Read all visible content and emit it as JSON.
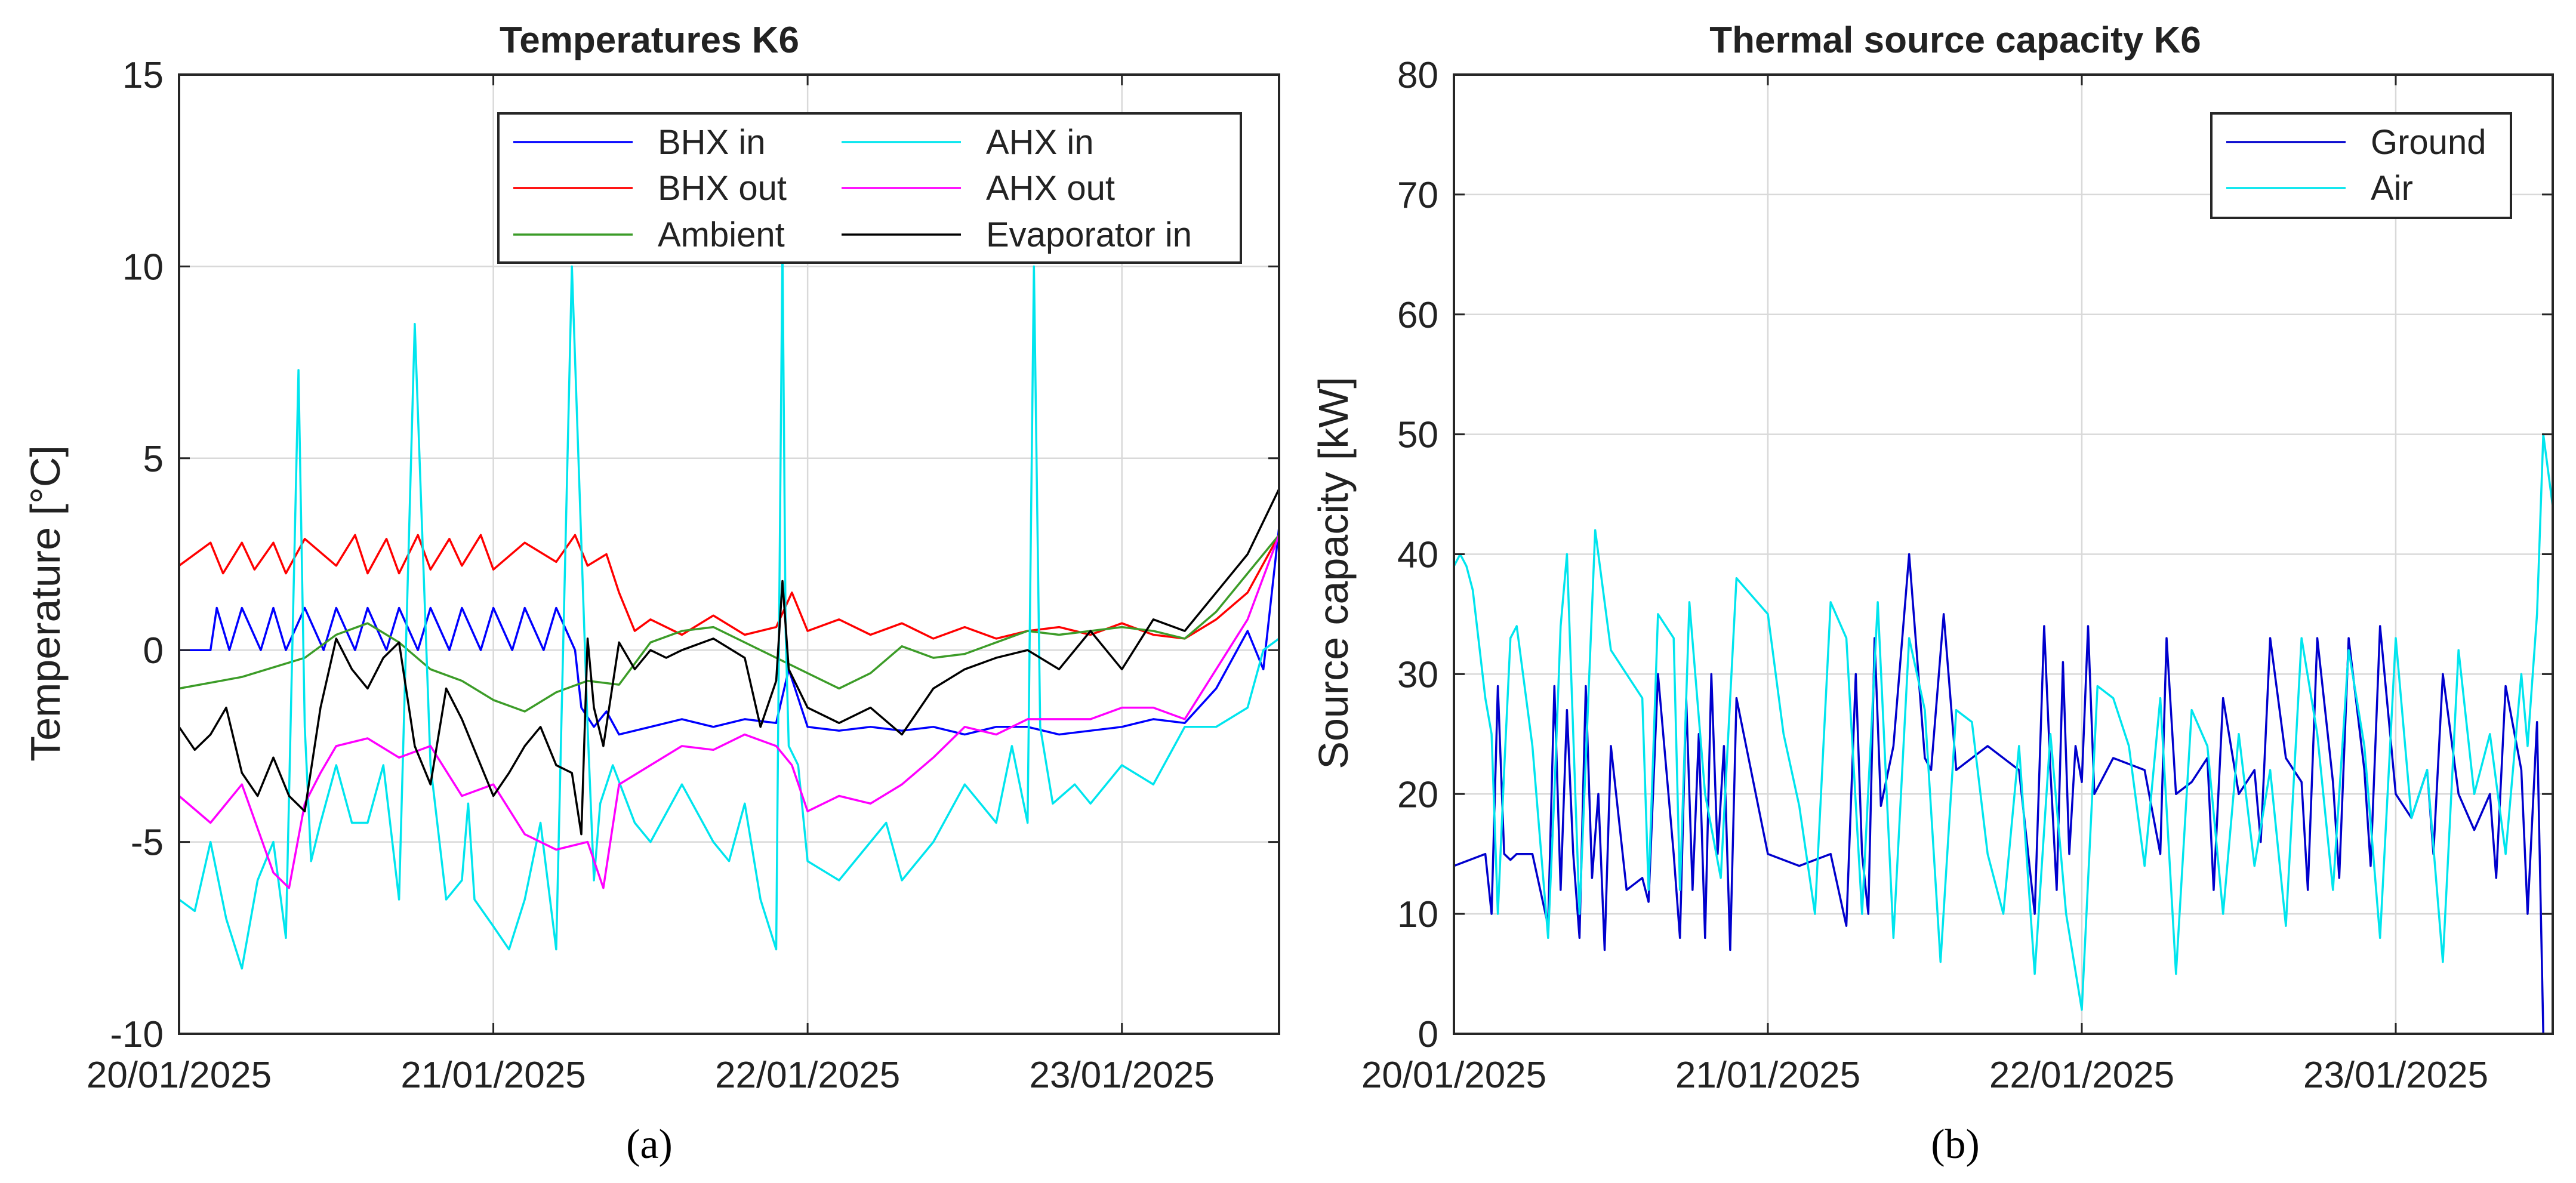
{
  "chart_data": [
    {
      "type": "line",
      "panel_label": "(a)",
      "title": "Temperatures K6",
      "xlabel": "",
      "ylabel": "Temperature [°C]",
      "ylim": [
        -10,
        15
      ],
      "yticks": [
        "-10",
        "-5",
        "0",
        "5",
        "10",
        "15"
      ],
      "x_range_days": [
        0,
        3.5
      ],
      "xtick_days": [
        0,
        1,
        2,
        3
      ],
      "xtick_labels": [
        "20/01/2025",
        "21/01/2025",
        "22/01/2025",
        "23/01/2025"
      ],
      "grid": true,
      "legend_position": "top-right",
      "legend_columns": 2,
      "series": [
        {
          "name": "BHX in",
          "color": "#0000ff",
          "x": [
            0,
            0.1,
            0.12,
            0.16,
            0.2,
            0.26,
            0.3,
            0.34,
            0.4,
            0.46,
            0.5,
            0.56,
            0.6,
            0.66,
            0.7,
            0.76,
            0.8,
            0.86,
            0.9,
            0.96,
            1.0,
            1.06,
            1.1,
            1.16,
            1.2,
            1.26,
            1.28,
            1.32,
            1.36,
            1.4,
            1.5,
            1.6,
            1.7,
            1.8,
            1.9,
            1.94,
            2.0,
            2.1,
            2.2,
            2.3,
            2.4,
            2.5,
            2.6,
            2.7,
            2.8,
            2.9,
            3.0,
            3.1,
            3.2,
            3.3,
            3.4,
            3.45,
            3.5
          ],
          "y": [
            0.0,
            0.0,
            1.1,
            0.0,
            1.1,
            0.0,
            1.1,
            0.0,
            1.1,
            0.0,
            1.1,
            0.0,
            1.1,
            0.0,
            1.1,
            0.0,
            1.1,
            0.0,
            1.1,
            0.0,
            1.1,
            0.0,
            1.1,
            0.0,
            1.1,
            0.0,
            -1.5,
            -2.0,
            -1.6,
            -2.2,
            -2.0,
            -1.8,
            -2.0,
            -1.8,
            -1.9,
            -0.5,
            -2.0,
            -2.1,
            -2.0,
            -2.1,
            -2.0,
            -2.2,
            -2.0,
            -2.0,
            -2.2,
            -2.1,
            -2.0,
            -1.8,
            -1.9,
            -1.0,
            0.5,
            -0.5,
            3.2
          ]
        },
        {
          "name": "BHX out",
          "color": "#ff0000",
          "x": [
            0,
            0.1,
            0.14,
            0.2,
            0.24,
            0.3,
            0.34,
            0.4,
            0.5,
            0.56,
            0.6,
            0.66,
            0.7,
            0.76,
            0.8,
            0.86,
            0.9,
            0.96,
            1.0,
            1.1,
            1.2,
            1.26,
            1.3,
            1.36,
            1.4,
            1.45,
            1.5,
            1.6,
            1.7,
            1.8,
            1.9,
            1.95,
            2.0,
            2.1,
            2.2,
            2.3,
            2.4,
            2.5,
            2.6,
            2.7,
            2.8,
            2.9,
            3.0,
            3.1,
            3.2,
            3.3,
            3.4,
            3.5
          ],
          "y": [
            2.2,
            2.8,
            2.0,
            2.8,
            2.1,
            2.8,
            2.0,
            2.9,
            2.2,
            3.0,
            2.0,
            2.9,
            2.0,
            3.0,
            2.1,
            2.9,
            2.2,
            3.0,
            2.1,
            2.8,
            2.3,
            3.0,
            2.2,
            2.5,
            1.5,
            0.5,
            0.8,
            0.4,
            0.9,
            0.4,
            0.6,
            1.5,
            0.5,
            0.8,
            0.4,
            0.7,
            0.3,
            0.6,
            0.3,
            0.5,
            0.6,
            0.4,
            0.7,
            0.4,
            0.3,
            0.8,
            1.5,
            3.0
          ]
        },
        {
          "name": "Ambient",
          "color": "#3c9c28",
          "x": [
            0,
            0.2,
            0.4,
            0.5,
            0.6,
            0.7,
            0.8,
            0.9,
            1.0,
            1.1,
            1.2,
            1.3,
            1.4,
            1.5,
            1.6,
            1.7,
            1.8,
            1.9,
            2.0,
            2.1,
            2.2,
            2.3,
            2.4,
            2.5,
            2.6,
            2.7,
            2.8,
            2.9,
            3.0,
            3.1,
            3.2,
            3.3,
            3.4,
            3.5
          ],
          "y": [
            -1.0,
            -0.7,
            -0.2,
            0.4,
            0.7,
            0.2,
            -0.5,
            -0.8,
            -1.3,
            -1.6,
            -1.1,
            -0.8,
            -0.9,
            0.2,
            0.5,
            0.6,
            0.2,
            -0.2,
            -0.6,
            -1.0,
            -0.6,
            0.1,
            -0.2,
            -0.1,
            0.2,
            0.5,
            0.4,
            0.5,
            0.6,
            0.5,
            0.3,
            1.0,
            2.0,
            3.0
          ]
        },
        {
          "name": "AHX in",
          "color": "#00e5ee",
          "x": [
            0,
            0.05,
            0.1,
            0.15,
            0.2,
            0.25,
            0.3,
            0.34,
            0.38,
            0.4,
            0.42,
            0.45,
            0.5,
            0.55,
            0.6,
            0.65,
            0.7,
            0.75,
            0.8,
            0.85,
            0.9,
            0.92,
            0.94,
            1.0,
            1.05,
            1.1,
            1.15,
            1.2,
            1.25,
            1.3,
            1.32,
            1.34,
            1.38,
            1.45,
            1.5,
            1.6,
            1.7,
            1.75,
            1.8,
            1.85,
            1.9,
            1.92,
            1.93,
            1.94,
            1.97,
            2.0,
            2.1,
            2.2,
            2.25,
            2.3,
            2.4,
            2.5,
            2.55,
            2.6,
            2.65,
            2.7,
            2.72,
            2.74,
            2.78,
            2.85,
            2.9,
            3.0,
            3.1,
            3.2,
            3.3,
            3.4,
            3.45,
            3.5
          ],
          "y": [
            -6.5,
            -6.8,
            -5.0,
            -7.0,
            -8.3,
            -6.0,
            -5.0,
            -7.5,
            7.3,
            -2.0,
            -5.5,
            -4.5,
            -3.0,
            -4.5,
            -4.5,
            -3.0,
            -6.5,
            8.5,
            -3.0,
            -6.5,
            -6.0,
            -4.0,
            -6.5,
            -7.2,
            -7.8,
            -6.5,
            -4.5,
            -7.8,
            10.0,
            -2.0,
            -6.0,
            -4.0,
            -3.0,
            -4.5,
            -5.0,
            -3.5,
            -5.0,
            -5.5,
            -4.0,
            -6.5,
            -7.8,
            10.5,
            0.5,
            -2.5,
            -3.0,
            -5.5,
            -6.0,
            -5.0,
            -4.5,
            -6.0,
            -5.0,
            -3.5,
            -4.0,
            -4.5,
            -2.5,
            -4.5,
            10.0,
            -2.0,
            -4.0,
            -3.5,
            -4.0,
            -3.0,
            -3.5,
            -2.0,
            -2.0,
            -1.5,
            0.0,
            0.3
          ]
        },
        {
          "name": "AHX out",
          "color": "#ff00ff",
          "x": [
            0,
            0.1,
            0.2,
            0.3,
            0.35,
            0.4,
            0.45,
            0.5,
            0.6,
            0.7,
            0.8,
            0.9,
            1.0,
            1.1,
            1.2,
            1.3,
            1.35,
            1.4,
            1.5,
            1.6,
            1.7,
            1.8,
            1.9,
            1.95,
            2.0,
            2.1,
            2.2,
            2.3,
            2.4,
            2.5,
            2.6,
            2.7,
            2.8,
            2.9,
            3.0,
            3.1,
            3.2,
            3.3,
            3.4,
            3.5
          ],
          "y": [
            -3.8,
            -4.5,
            -3.5,
            -5.8,
            -6.2,
            -4.0,
            -3.2,
            -2.5,
            -2.3,
            -2.8,
            -2.5,
            -3.8,
            -3.5,
            -4.8,
            -5.2,
            -5.0,
            -6.2,
            -3.5,
            -3.0,
            -2.5,
            -2.6,
            -2.2,
            -2.5,
            -3.0,
            -4.2,
            -3.8,
            -4.0,
            -3.5,
            -2.8,
            -2.0,
            -2.2,
            -1.8,
            -1.8,
            -1.8,
            -1.5,
            -1.5,
            -1.8,
            -0.5,
            0.8,
            3.0
          ]
        },
        {
          "name": "Evaporator in",
          "color": "#000000",
          "x": [
            0,
            0.05,
            0.1,
            0.15,
            0.2,
            0.25,
            0.3,
            0.35,
            0.4,
            0.45,
            0.5,
            0.55,
            0.6,
            0.65,
            0.7,
            0.75,
            0.8,
            0.85,
            0.9,
            0.95,
            1.0,
            1.05,
            1.1,
            1.15,
            1.2,
            1.25,
            1.28,
            1.3,
            1.32,
            1.35,
            1.4,
            1.45,
            1.5,
            1.55,
            1.6,
            1.7,
            1.8,
            1.85,
            1.9,
            1.92,
            1.94,
            2.0,
            2.1,
            2.2,
            2.3,
            2.4,
            2.5,
            2.6,
            2.7,
            2.8,
            2.9,
            3.0,
            3.1,
            3.2,
            3.3,
            3.4,
            3.5
          ],
          "y": [
            -2.0,
            -2.6,
            -2.2,
            -1.5,
            -3.2,
            -3.8,
            -2.8,
            -3.8,
            -4.2,
            -1.5,
            0.3,
            -0.5,
            -1.0,
            -0.2,
            0.2,
            -2.5,
            -3.5,
            -1.0,
            -1.8,
            -2.8,
            -3.8,
            -3.2,
            -2.5,
            -2.0,
            -3.0,
            -3.2,
            -4.8,
            0.3,
            -1.5,
            -2.5,
            0.2,
            -0.5,
            0.0,
            -0.2,
            0.0,
            0.3,
            -0.2,
            -2.0,
            -0.8,
            1.8,
            -0.5,
            -1.5,
            -1.9,
            -1.5,
            -2.2,
            -1.0,
            -0.5,
            -0.2,
            0.0,
            -0.5,
            0.5,
            -0.5,
            0.8,
            0.5,
            1.5,
            2.5,
            4.2
          ]
        }
      ]
    },
    {
      "type": "line",
      "panel_label": "(b)",
      "title": "Thermal source capacity K6",
      "xlabel": "",
      "ylabel": "Source capacity [kW]",
      "ylim": [
        0,
        80
      ],
      "yticks": [
        "0",
        "10",
        "20",
        "30",
        "40",
        "50",
        "60",
        "70",
        "80"
      ],
      "x_range_days": [
        0,
        3.5
      ],
      "xtick_days": [
        0,
        1,
        2,
        3
      ],
      "xtick_labels": [
        "20/01/2025",
        "21/01/2025",
        "22/01/2025",
        "23/01/2025"
      ],
      "grid": true,
      "legend_position": "top-right",
      "legend_columns": 1,
      "series": [
        {
          "name": "Ground",
          "color": "#0000cd",
          "x": [
            0,
            0.05,
            0.1,
            0.12,
            0.14,
            0.16,
            0.18,
            0.2,
            0.25,
            0.3,
            0.32,
            0.34,
            0.36,
            0.38,
            0.4,
            0.42,
            0.44,
            0.46,
            0.48,
            0.5,
            0.55,
            0.6,
            0.62,
            0.65,
            0.7,
            0.72,
            0.74,
            0.76,
            0.78,
            0.8,
            0.82,
            0.84,
            0.86,
            0.88,
            0.9,
            1.0,
            1.1,
            1.2,
            1.25,
            1.28,
            1.3,
            1.32,
            1.34,
            1.36,
            1.4,
            1.45,
            1.5,
            1.52,
            1.56,
            1.6,
            1.7,
            1.8,
            1.85,
            1.88,
            1.9,
            1.92,
            1.94,
            1.96,
            1.98,
            2.0,
            2.02,
            2.04,
            2.1,
            2.2,
            2.25,
            2.27,
            2.3,
            2.35,
            2.4,
            2.42,
            2.45,
            2.5,
            2.55,
            2.57,
            2.6,
            2.65,
            2.7,
            2.72,
            2.75,
            2.8,
            2.82,
            2.85,
            2.9,
            2.92,
            2.95,
            3.0,
            3.05,
            3.1,
            3.12,
            3.15,
            3.2,
            3.25,
            3.3,
            3.32,
            3.35,
            3.4,
            3.42,
            3.45,
            3.47,
            3.5
          ],
          "y": [
            14,
            14.5,
            15,
            10,
            29,
            15,
            14.5,
            15,
            15,
            9,
            29,
            12,
            27,
            15,
            8,
            29,
            13,
            20,
            7,
            24,
            12,
            13,
            11,
            30,
            15,
            8,
            28,
            12,
            25,
            8,
            30,
            15,
            24,
            7,
            28,
            15,
            14,
            15,
            9,
            30,
            15,
            10,
            33,
            19,
            24,
            40,
            23,
            22,
            35,
            22,
            24,
            22,
            10,
            34,
            22,
            12,
            31,
            15,
            24,
            21,
            34,
            20,
            23,
            22,
            15,
            33,
            20,
            21,
            23,
            12,
            28,
            20,
            22,
            16,
            33,
            23,
            21,
            12,
            33,
            21,
            13,
            33,
            22,
            14,
            34,
            20,
            18,
            22,
            15,
            30,
            20,
            17,
            20,
            13,
            29,
            22,
            10,
            26,
            0,
            0
          ]
        },
        {
          "name": "Air",
          "color": "#00e5ee",
          "x": [
            0,
            0.02,
            0.04,
            0.06,
            0.1,
            0.12,
            0.14,
            0.16,
            0.18,
            0.2,
            0.25,
            0.3,
            0.32,
            0.34,
            0.36,
            0.4,
            0.45,
            0.5,
            0.55,
            0.6,
            0.62,
            0.65,
            0.7,
            0.72,
            0.75,
            0.8,
            0.85,
            0.9,
            1.0,
            1.05,
            1.1,
            1.15,
            1.2,
            1.25,
            1.3,
            1.35,
            1.4,
            1.45,
            1.5,
            1.55,
            1.6,
            1.65,
            1.7,
            1.75,
            1.8,
            1.85,
            1.9,
            1.95,
            2.0,
            2.05,
            2.1,
            2.15,
            2.2,
            2.25,
            2.3,
            2.35,
            2.4,
            2.45,
            2.5,
            2.55,
            2.6,
            2.65,
            2.7,
            2.75,
            2.8,
            2.85,
            2.9,
            2.95,
            3.0,
            3.05,
            3.1,
            3.15,
            3.2,
            3.25,
            3.3,
            3.35,
            3.4,
            3.42,
            3.45,
            3.47,
            3.5
          ],
          "y": [
            39,
            40,
            39,
            37,
            28,
            25,
            10,
            22,
            33,
            34,
            24,
            8,
            20,
            34,
            40,
            10,
            42,
            32,
            30,
            28,
            12,
            35,
            33,
            12,
            36,
            20,
            13,
            38,
            35,
            25,
            19,
            10,
            36,
            33,
            10,
            36,
            8,
            33,
            27,
            6,
            27,
            26,
            15,
            10,
            24,
            5,
            25,
            10,
            2,
            29,
            28,
            24,
            14,
            28,
            5,
            27,
            24,
            10,
            25,
            14,
            22,
            9,
            33,
            25,
            12,
            32,
            24,
            8,
            33,
            18,
            22,
            6,
            32,
            20,
            25,
            15,
            30,
            24,
            35,
            50,
            44
          ]
        }
      ]
    }
  ]
}
